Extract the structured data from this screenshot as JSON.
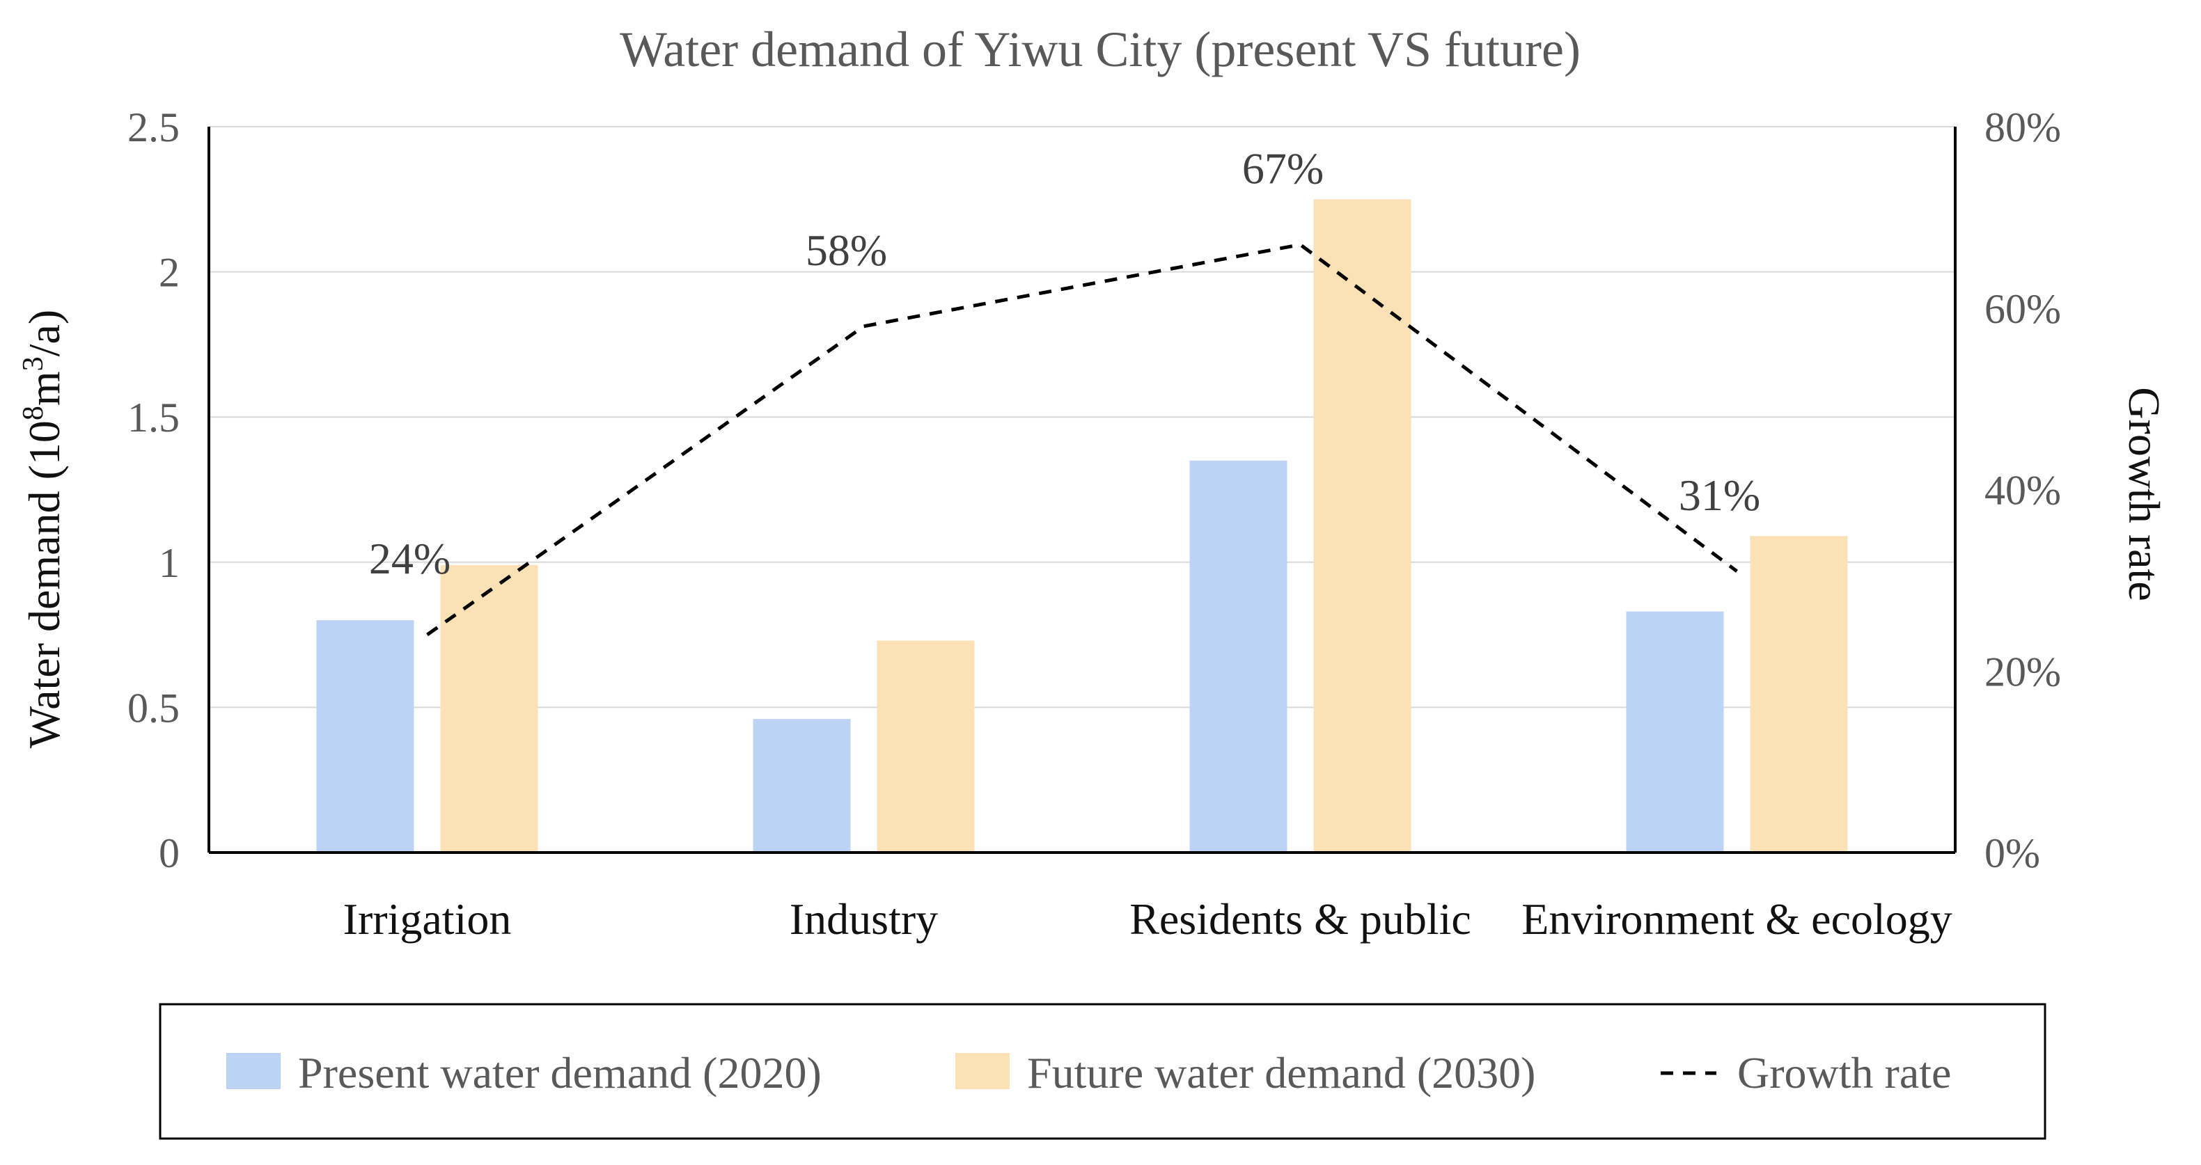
{
  "chart_data": {
    "type": "bar",
    "title": "Water demand of Yiwu City (present VS future)",
    "categories": [
      "Irrigation",
      "Industry",
      "Residents & public",
      "Environment & ecology"
    ],
    "series": [
      {
        "name": "Present water demand (2020)",
        "values": [
          0.8,
          0.46,
          1.35,
          0.83
        ],
        "color": "#bdd3f5"
      },
      {
        "name": "Future water demand (2030)",
        "values": [
          0.99,
          0.73,
          2.25,
          1.09
        ],
        "color": "#fde1b6"
      }
    ],
    "line_series": {
      "name": "Growth rate",
      "values": [
        24,
        58,
        67,
        31
      ],
      "labels": [
        "24%",
        "58%",
        "67%",
        "31%"
      ],
      "color": "#000000",
      "style": "dashed"
    },
    "ylabel_prefix": "Water demand (10",
    "ylabel_sup1": "8",
    "ylabel_mid": "m",
    "ylabel_sup2": "3",
    "ylabel_suffix": "/a)",
    "y2label": "Growth rate",
    "ylim": [
      0,
      2.5
    ],
    "yticks": [
      "0",
      "0.5",
      "1",
      "1.5",
      "2",
      "2.5"
    ],
    "y2lim": [
      0,
      80
    ],
    "y2ticks": [
      "0%",
      "20%",
      "40%",
      "60%",
      "80%"
    ],
    "grid": true,
    "legend_position": "bottom"
  }
}
